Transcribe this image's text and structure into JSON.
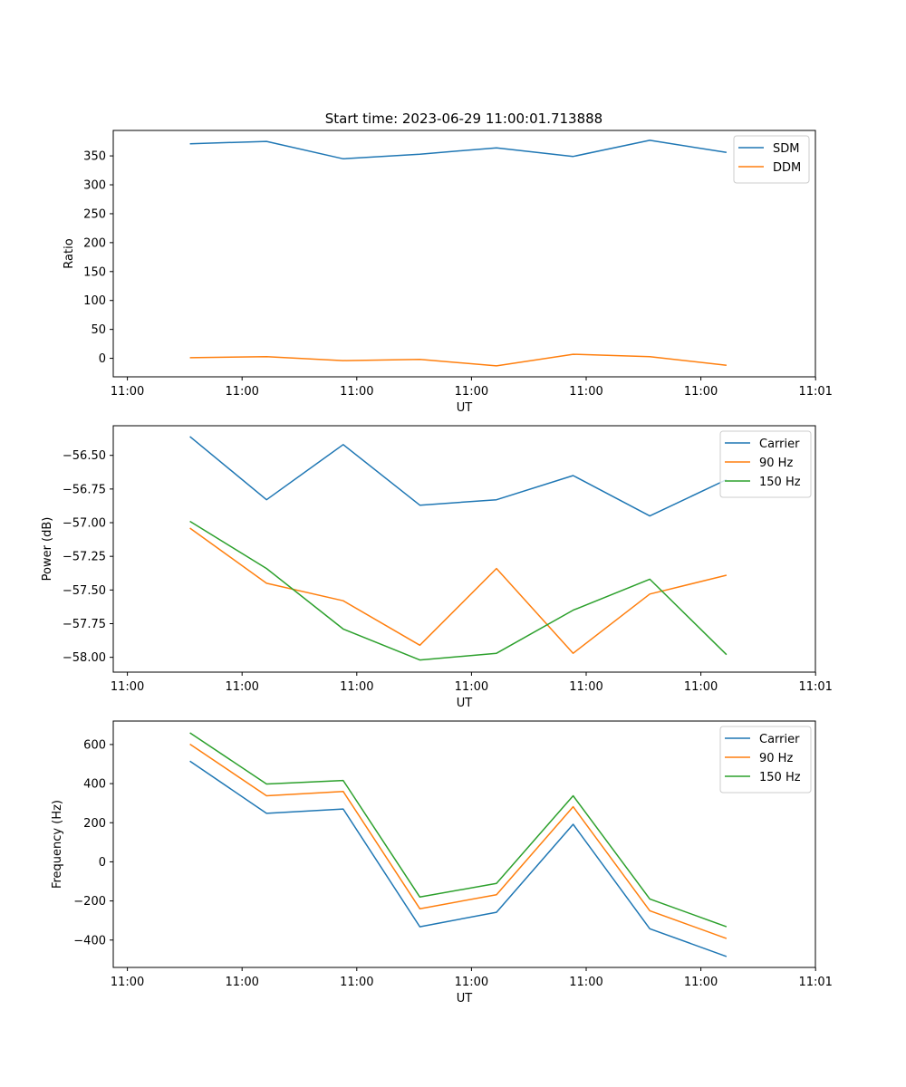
{
  "title": "Start time: 2023-06-29 11:00:01.713888",
  "chart_data": [
    {
      "type": "line",
      "title": "Start time: 2023-06-29 11:00:01.713888",
      "xlabel": "UT",
      "ylabel": "Ratio",
      "xtick_labels": [
        "11:00",
        "11:00",
        "11:00",
        "11:00",
        "11:00",
        "11:00",
        "11:01"
      ],
      "x": [
        1,
        2,
        3,
        4,
        5,
        6,
        7,
        8
      ],
      "xlim": [
        0,
        9.16
      ],
      "ylim": [
        -32,
        394
      ],
      "yticks": [
        0,
        50,
        100,
        150,
        200,
        250,
        300,
        350
      ],
      "legend_position": "top-right",
      "series": [
        {
          "name": "SDM",
          "color": "#1f77b4",
          "values": [
            371,
            375,
            345,
            353,
            364,
            349,
            377,
            356
          ]
        },
        {
          "name": "DDM",
          "color": "#ff7f0e",
          "values": [
            1,
            3,
            -4,
            -2,
            -13,
            7,
            3,
            -12
          ]
        }
      ]
    },
    {
      "type": "line",
      "xlabel": "UT",
      "ylabel": "Power (dB)",
      "xtick_labels": [
        "11:00",
        "11:00",
        "11:00",
        "11:00",
        "11:00",
        "11:00",
        "11:01"
      ],
      "x": [
        1,
        2,
        3,
        4,
        5,
        6,
        7,
        8
      ],
      "xlim": [
        0,
        9.16
      ],
      "ylim": [
        -58.11,
        -56.28
      ],
      "yticks": [
        -58.0,
        -57.75,
        -57.5,
        -57.25,
        -57.0,
        -56.75,
        -56.5
      ],
      "ytick_labels": [
        "−58.00",
        "−57.75",
        "−57.50",
        "−57.25",
        "−57.00",
        "−56.75",
        "−56.50"
      ],
      "legend_position": "top-right",
      "series": [
        {
          "name": "Carrier",
          "color": "#1f77b4",
          "values": [
            -56.36,
            -56.83,
            -56.42,
            -56.87,
            -56.83,
            -56.65,
            -56.95,
            -56.68
          ]
        },
        {
          "name": "90 Hz",
          "color": "#ff7f0e",
          "values": [
            -57.04,
            -57.45,
            -57.58,
            -57.91,
            -57.34,
            -57.97,
            -57.53,
            -57.39
          ]
        },
        {
          "name": "150 Hz",
          "color": "#2ca02c",
          "values": [
            -56.99,
            -57.34,
            -57.79,
            -58.02,
            -57.97,
            -57.65,
            -57.42,
            -57.98
          ]
        }
      ]
    },
    {
      "type": "line",
      "xlabel": "UT",
      "ylabel": "Frequency (Hz)",
      "xtick_labels": [
        "11:00",
        "11:00",
        "11:00",
        "11:00",
        "11:00",
        "11:00",
        "11:01"
      ],
      "x": [
        1,
        2,
        3,
        4,
        5,
        6,
        7,
        8
      ],
      "xlim": [
        0,
        9.16
      ],
      "ylim": [
        -540,
        720
      ],
      "yticks": [
        -400,
        -200,
        0,
        200,
        400,
        600
      ],
      "ytick_labels": [
        "−400",
        "−200",
        "0",
        "200",
        "400",
        "600"
      ],
      "legend_position": "top-right",
      "series": [
        {
          "name": "Carrier",
          "color": "#1f77b4",
          "values": [
            515,
            248,
            270,
            -332,
            -258,
            192,
            -342,
            -484
          ]
        },
        {
          "name": "90 Hz",
          "color": "#ff7f0e",
          "values": [
            602,
            338,
            360,
            -240,
            -168,
            282,
            -250,
            -392
          ]
        },
        {
          "name": "150 Hz",
          "color": "#2ca02c",
          "values": [
            660,
            398,
            416,
            -180,
            -110,
            338,
            -190,
            -332
          ]
        }
      ]
    }
  ]
}
